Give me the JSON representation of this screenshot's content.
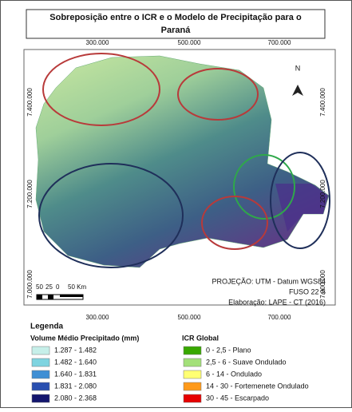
{
  "title": "Sobreposição entre o ICR e o Modelo de Precipitação para o Paraná",
  "title_lines": [
    "Sobreposição entre o ICR e o Modelo de Precipitação para o",
    "Paraná"
  ],
  "x_coords": [
    "300.000",
    "500.000",
    "700.000"
  ],
  "y_coords": [
    "7.400.000",
    "7.200.000",
    "7.000.000"
  ],
  "north": "N",
  "scale_labels": [
    "50",
    "25",
    "0",
    "50 Km"
  ],
  "info": [
    "PROJEÇÃO: UTM - Datum WGS84",
    "FUSO 22 S",
    "Elaboração: LAPE - CT (2016)"
  ],
  "legend": {
    "title": "Legenda",
    "precip": {
      "title": "Volume Médio Precipitado (mm)",
      "items": [
        {
          "label": "1.287 - 1.482",
          "color": "#c6efe9"
        },
        {
          "label": "1.482 - 1.640",
          "color": "#7fd4e0"
        },
        {
          "label": "1.640 - 1.831",
          "color": "#3f8fd4"
        },
        {
          "label": "1.831 - 2.080",
          "color": "#2a4fb0"
        },
        {
          "label": "2.080 - 2.368",
          "color": "#14166e"
        }
      ]
    },
    "icr": {
      "title": "ICR Global",
      "items": [
        {
          "label": "0 - 2,5 - Plano",
          "color": "#38a800"
        },
        {
          "label": "2,5 - 6 - Suave Ondulado",
          "color": "#a3e07a"
        },
        {
          "label": "6 - 14 - Ondulado",
          "color": "#ffff73"
        },
        {
          "label": "14 - 30 - Fortemenete Ondulado",
          "color": "#ff9a1a"
        },
        {
          "label": "30 - 45 - Escarpado",
          "color": "#e60000"
        }
      ]
    }
  }
}
